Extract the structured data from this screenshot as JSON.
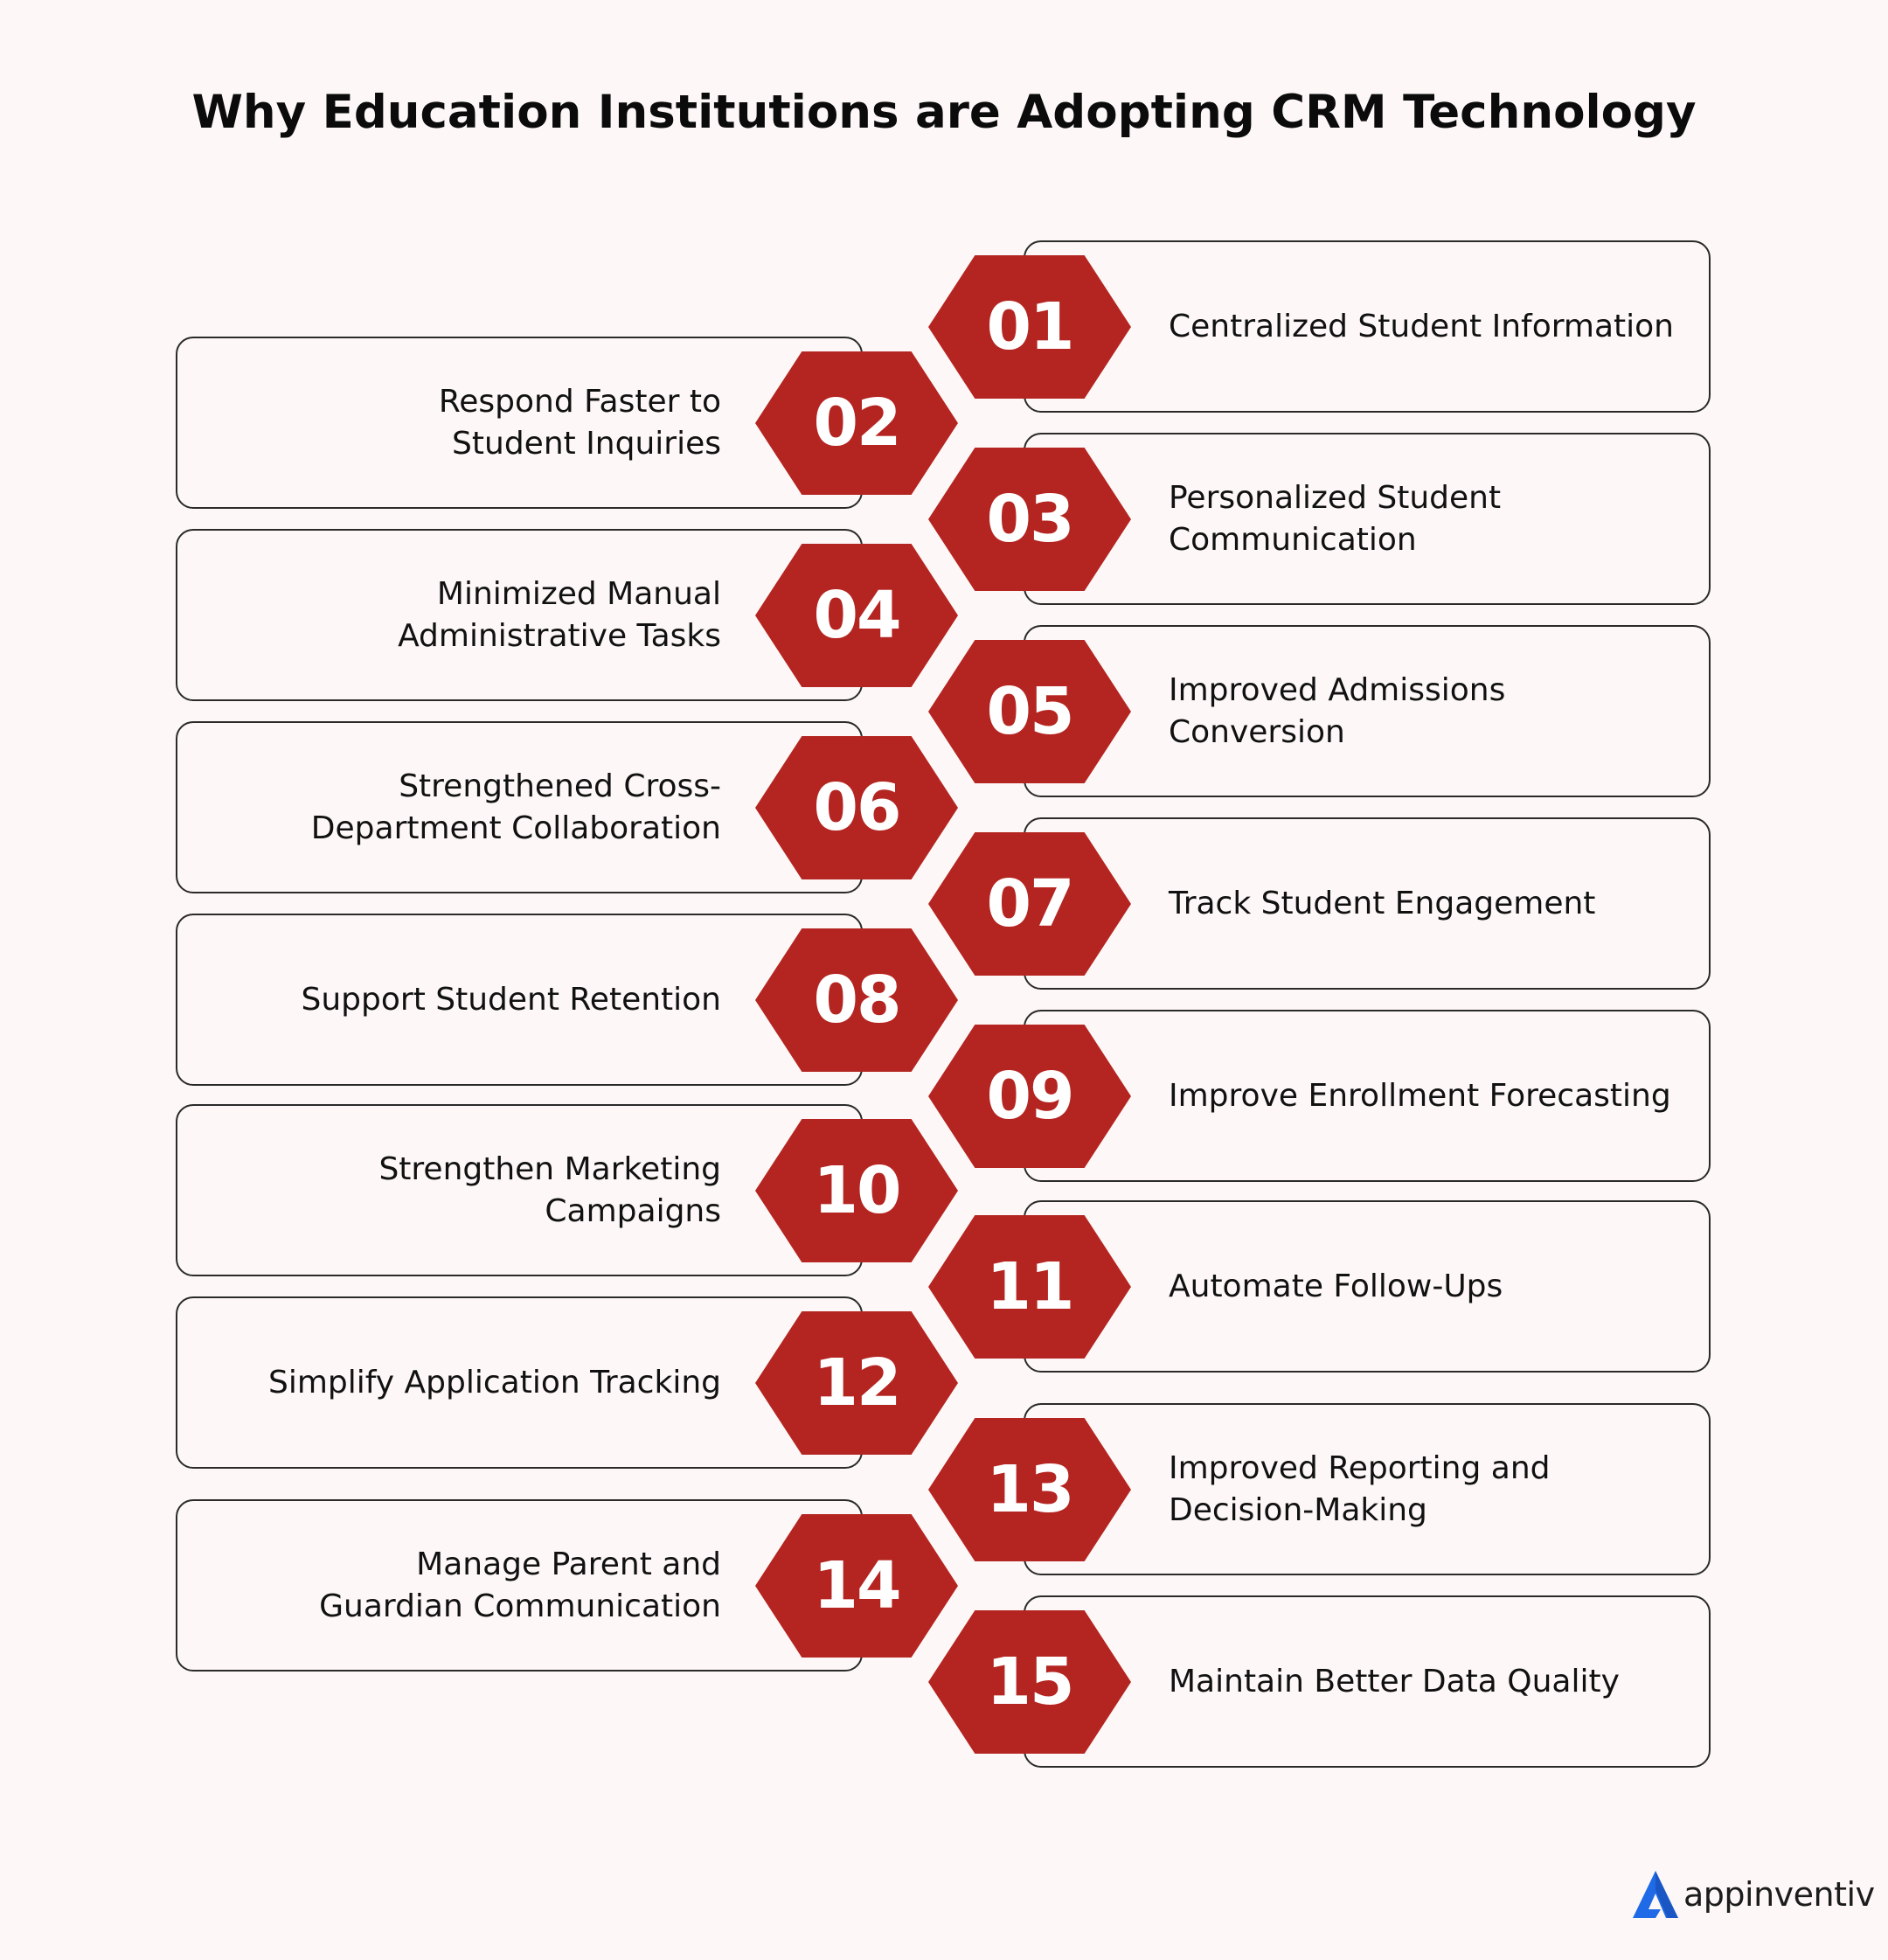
{
  "title": "Why Education Institutions are Adopting CRM Technology",
  "colors": {
    "background": "#fdf8f7",
    "hexagon": "#b42521",
    "card_border": "#2a2a2a",
    "text": "#111111",
    "brand_blue": "#1f6ae6"
  },
  "items": [
    {
      "num": "01",
      "text": "Centralized Student Information"
    },
    {
      "num": "02",
      "text": "Respond Faster to\nStudent Inquiries"
    },
    {
      "num": "03",
      "text": "Personalized Student\nCommunication"
    },
    {
      "num": "04",
      "text": "Minimized Manual\nAdministrative Tasks"
    },
    {
      "num": "05",
      "text": "Improved Admissions Conversion"
    },
    {
      "num": "06",
      "text": "Strengthened Cross-\nDepartment Collaboration"
    },
    {
      "num": "07",
      "text": "Track Student Engagement"
    },
    {
      "num": "08",
      "text": "Support Student Retention"
    },
    {
      "num": "09",
      "text": "Improve Enrollment Forecasting"
    },
    {
      "num": "10",
      "text": "Strengthen Marketing Campaigns"
    },
    {
      "num": "11",
      "text": "Automate Follow-Ups"
    },
    {
      "num": "12",
      "text": "Simplify Application Tracking"
    },
    {
      "num": "13",
      "text": "Improved Reporting and\nDecision-Making"
    },
    {
      "num": "14",
      "text": "Manage Parent and\nGuardian Communication"
    },
    {
      "num": "15",
      "text": "Maintain Better Data Quality"
    }
  ],
  "brand": {
    "name": "appinventiv",
    "icon": "appinventiv-logo-icon"
  }
}
